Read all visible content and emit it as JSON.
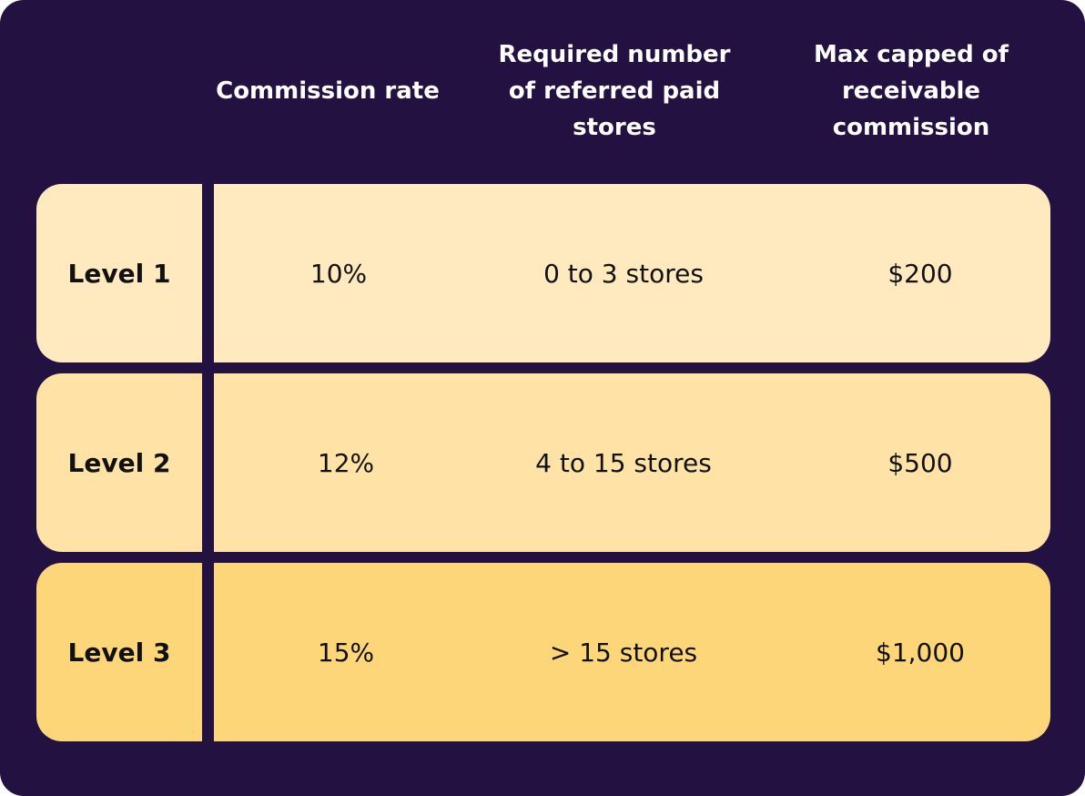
{
  "headers": {
    "commission_rate": "Commission rate",
    "required_stores": "Required number\nof referred paid\nstores",
    "max_capped": "Max capped of\nreceivable\ncommission"
  },
  "colors": {
    "background": "#231141",
    "level_1": "#FFEAC0",
    "level_2": "#FFE3A6",
    "level_3": "#FDD67A"
  },
  "rows": [
    {
      "level": "Level 1",
      "rate": "10%",
      "stores": "0 to 3 stores",
      "cap": "$200"
    },
    {
      "level": "Level 2",
      "rate": "12%",
      "stores": "4 to 15 stores",
      "cap": "$500"
    },
    {
      "level": "Level 3",
      "rate": "15%",
      "stores": "> 15 stores",
      "cap": "$1,000"
    }
  ]
}
